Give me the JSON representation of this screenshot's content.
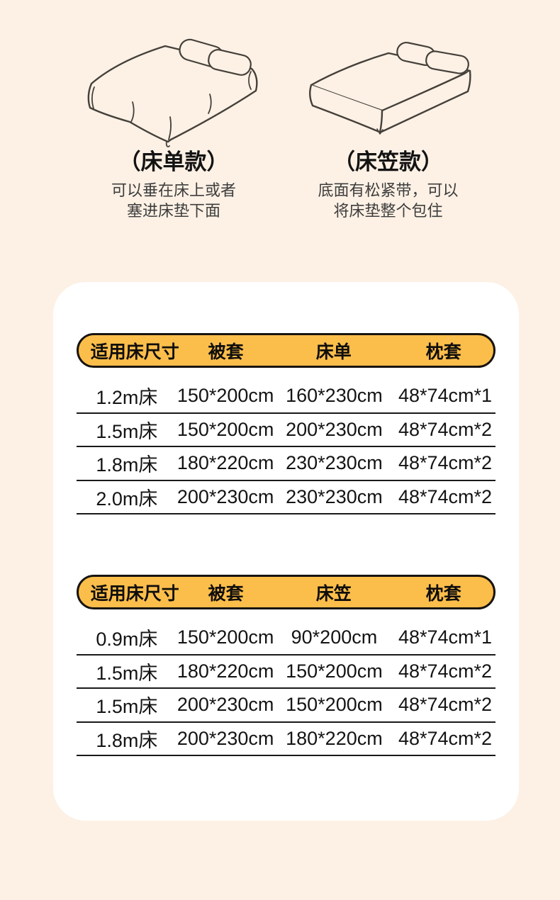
{
  "colors": {
    "background": "#fdf1e5",
    "card": "#ffffff",
    "header_pill_yellow": "#fcbe4b",
    "pill_border": "#171310",
    "table_line": "#191919",
    "text_primary": "#141414",
    "text_secondary": "#3d3d3d",
    "sketch_stroke": "#45403a"
  },
  "bed_styles": [
    {
      "title": "（床单款）",
      "description": [
        "可以垂在床上或者",
        "塞进床垫下面"
      ],
      "illustration": "bed-with-draped-sheet"
    },
    {
      "title": "（床笠款）",
      "description": [
        "底面有松紧带，可以",
        "将床垫整个包住"
      ],
      "illustration": "mattress-with-fitted-sheet"
    }
  ],
  "tables": [
    {
      "headers": [
        "适用床尺寸",
        "被套",
        "床单",
        "枕套"
      ],
      "rows": [
        [
          "1.2m床",
          "150*200cm",
          "160*230cm",
          "48*74cm*1"
        ],
        [
          "1.5m床",
          "150*200cm",
          "200*230cm",
          "48*74cm*2"
        ],
        [
          "1.8m床",
          "180*220cm",
          "230*230cm",
          "48*74cm*2"
        ],
        [
          "2.0m床",
          "200*230cm",
          "230*230cm",
          "48*74cm*2"
        ]
      ]
    },
    {
      "headers": [
        "适用床尺寸",
        "被套",
        "床笠",
        "枕套"
      ],
      "rows": [
        [
          "0.9m床",
          "150*200cm",
          "90*200cm",
          "48*74cm*1"
        ],
        [
          "1.5m床",
          "180*220cm",
          "150*200cm",
          "48*74cm*2"
        ],
        [
          "1.5m床",
          "200*230cm",
          "150*200cm",
          "48*74cm*2"
        ],
        [
          "1.8m床",
          "200*230cm",
          "180*220cm",
          "48*74cm*2"
        ]
      ]
    }
  ]
}
